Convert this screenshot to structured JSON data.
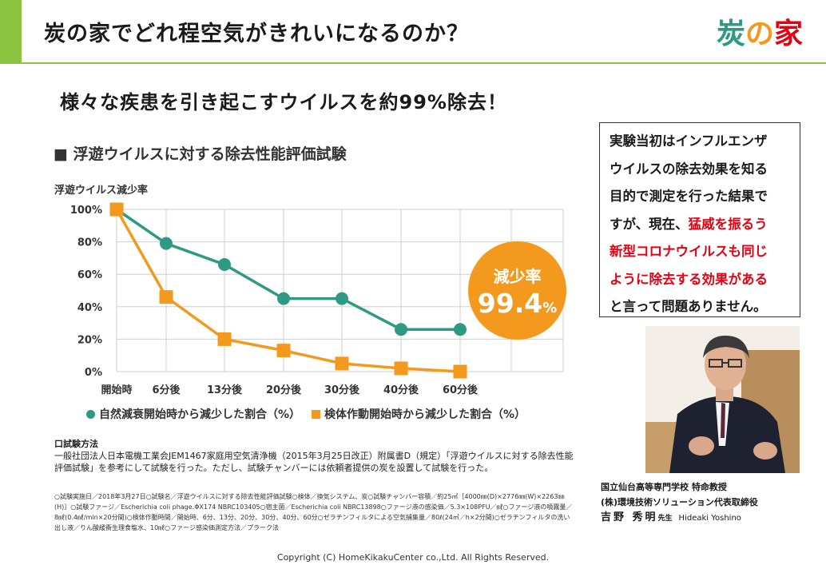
{
  "header": {
    "title": "炭の家でどれ程空気がきれいになるのか？",
    "logo": {
      "text": "炭の家",
      "colors": [
        "#2e9a84",
        "#f39a1e",
        "#e60012",
        "#8ac440"
      ]
    }
  },
  "headline": "様々な疾患を引き起こすウイルスを約99%除去！",
  "chart_data": {
    "type": "line",
    "title": "■ 浮遊ウイルスに対する除去性能評価試験",
    "ylabel": "浮遊ウイルス減少率",
    "xlabel": "",
    "categories": [
      "開始時",
      "6分後",
      "13分後",
      "20分後",
      "30分後",
      "40分後",
      "60分後"
    ],
    "y_ticks": [
      "0%",
      "20%",
      "40%",
      "60%",
      "80%",
      "100%"
    ],
    "ylim": [
      0,
      100
    ],
    "grid": true,
    "legend_position": "bottom",
    "series": [
      {
        "name": "自然減衰開始時から減少した割合（%）",
        "marker": "circle",
        "color": "#2e9a84",
        "values": [
          100,
          79,
          66,
          45,
          45,
          26,
          26
        ]
      },
      {
        "name": "検体作動開始時から減少した割合（%）",
        "marker": "square",
        "color": "#f39a1e",
        "values": [
          100,
          46,
          20,
          13,
          5,
          2,
          0
        ]
      }
    ]
  },
  "reduction": {
    "label": "減少率",
    "value": "99.4",
    "unit": "%"
  },
  "callout": {
    "lines": [
      [
        {
          "text": "実験当初はインフルエンザ",
          "red": false
        }
      ],
      [
        {
          "text": "ウイルスの除去効果を知る",
          "red": false
        }
      ],
      [
        {
          "text": "目的で測定を行った結果で",
          "red": false
        }
      ],
      [
        {
          "text": "すが、現在、",
          "red": false
        },
        {
          "text": "猛威を振るう",
          "red": true
        }
      ],
      [
        {
          "text": "新型コロナウイルスも同じ",
          "red": true
        }
      ],
      [
        {
          "text": "ように除去する効果がある",
          "red": true
        }
      ],
      [
        {
          "text": "と言って問題ありません。",
          "red": false
        }
      ]
    ]
  },
  "test_method": {
    "title": "口試験方法",
    "body": "一般社団法人日本電機工業会JEM1467家庭用空気清浄機（2015年3月25日改正）附属書D（規定）「浮遊ウイルスに対する除去性能評価試験」を参考にして試験を行った。ただし、試験チャンバーには依頼者提供の炭を設置して試験を行った。",
    "details": "○試験実施日／2018年3月27日○試験名／浮遊ウイルスに対する除去性能評価試験○検体／換気システム、炭○試験チャンバー容積／約25㎥［4000㎜(D)×2776㎜(W)×2263㎜(H)］○試験ファージ／Escherichia coli phage.ΦX174 NBRC103405○宿主菌／Escherichia coli NBRC13898○ファージ液の感染価／5.3×108PFU／㎖○ファージ液の噴霧量／8㎖(0.4㎖/min×20分間)○検体作動時間／開始時、6分、13分、20分、30分、40分、60分○ゼラチンフィルタによる空気捕集量／80ℓ(24㎥／h×2分間)○ゼラチンフィルタの洗い出し液／りん酸緩衝生理食塩水、10㎖○ファージ感染価測定方法／プラーク法"
  },
  "person": {
    "org1": "国立仙台高等専門学校 特命教授",
    "org2": "(株)環境技術ソリューション代表取締役",
    "name": "吉野 秀明",
    "honorific": "先生",
    "name_roman": "Hideaki Yoshino"
  },
  "footer": {
    "copyright": "Copyright (C) HomeKikakuCenter co.,Ltd. All Rights Reserved."
  }
}
